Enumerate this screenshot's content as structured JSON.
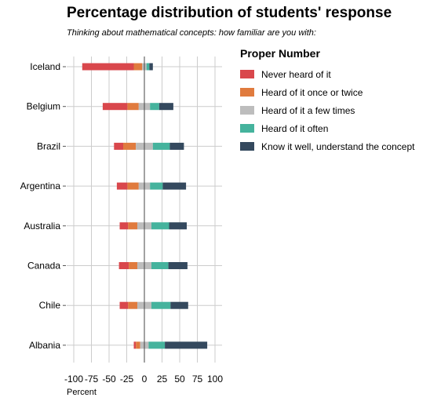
{
  "chart_data": {
    "type": "bar",
    "subtype": "diverging-stacked-horizontal",
    "title": "Percentage distribution of students' response",
    "subtitle": "Thinking about mathematical concepts: how familiar are you with:",
    "xlabel": "Percent",
    "ylabel": "",
    "xlim": [
      -110,
      110
    ],
    "x_ticks": [
      -100,
      -75,
      -50,
      -25,
      0,
      25,
      50,
      75,
      100
    ],
    "x_tick_labels": [
      "-100",
      "-75",
      "-50",
      "-25",
      "0",
      "25",
      "50",
      "75",
      "100"
    ],
    "grid": true,
    "legend_title": "Proper Number",
    "legend_position": "right",
    "categories": [
      "Iceland",
      "Belgium",
      "Brazil",
      "Argentina",
      "Australia",
      "Canada",
      "Chile",
      "Albania"
    ],
    "series": [
      {
        "name": "Never heard of it",
        "color": "#d9474c",
        "values": [
          73,
          35,
          13,
          15,
          12,
          14,
          12,
          3
        ]
      },
      {
        "name": "Heard of it once or twice",
        "color": "#e07b3e",
        "values": [
          12,
          16,
          18,
          16,
          13,
          12,
          13,
          6
        ]
      },
      {
        "name": "Heard of it a few times",
        "color": "#bdbdbd",
        "values": [
          6,
          16,
          24,
          16,
          20,
          20,
          20,
          12
        ]
      },
      {
        "name": "Heard of it often",
        "color": "#45b39d",
        "values": [
          4,
          13,
          24,
          18,
          25,
          24,
          27,
          23
        ]
      },
      {
        "name": "Know it well, understand the concept",
        "color": "#34495e",
        "values": [
          5,
          20,
          20,
          33,
          25,
          27,
          25,
          60
        ]
      }
    ]
  }
}
